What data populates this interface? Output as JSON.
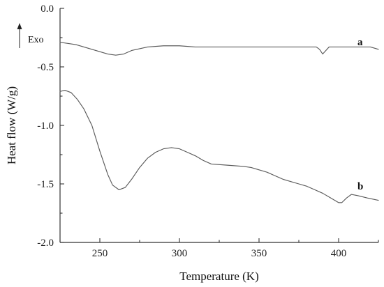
{
  "chart_data": {
    "type": "line",
    "xlabel": "Temperature (K)",
    "ylabel": "Heat flow (W/g)",
    "xlim": [
      225,
      425
    ],
    "ylim": [
      -2.0,
      0.0
    ],
    "x_ticks": [
      250,
      300,
      350,
      400
    ],
    "y_ticks": [
      0.0,
      -0.5,
      -1.0,
      -1.5,
      -2.0
    ],
    "x_tick_labels": [
      "250",
      "300",
      "350",
      "400"
    ],
    "y_tick_labels": [
      "0.0",
      "-0.5",
      "-1.0",
      "-1.5",
      "-2.0"
    ],
    "grid": false,
    "legend": "none",
    "annotations": {
      "exo_label": "Exo",
      "series_a_label": "a",
      "series_b_label": "b"
    },
    "series": [
      {
        "name": "a",
        "x": [
          225,
          235,
          245,
          255,
          260,
          265,
          270,
          280,
          290,
          300,
          310,
          320,
          330,
          340,
          350,
          360,
          370,
          380,
          386,
          388,
          390,
          392,
          394,
          400,
          410,
          420,
          425
        ],
        "y": [
          -0.29,
          -0.31,
          -0.35,
          -0.39,
          -0.4,
          -0.39,
          -0.36,
          -0.33,
          -0.32,
          -0.32,
          -0.33,
          -0.33,
          -0.33,
          -0.33,
          -0.33,
          -0.33,
          -0.33,
          -0.33,
          -0.33,
          -0.35,
          -0.39,
          -0.36,
          -0.33,
          -0.33,
          -0.33,
          -0.33,
          -0.35
        ]
      },
      {
        "name": "b",
        "x": [
          225,
          228,
          232,
          236,
          240,
          245,
          250,
          255,
          258,
          262,
          266,
          270,
          275,
          280,
          285,
          290,
          295,
          300,
          305,
          310,
          315,
          320,
          330,
          340,
          345,
          350,
          355,
          360,
          365,
          370,
          375,
          380,
          385,
          390,
          395,
          400,
          402,
          405,
          408,
          412,
          418,
          425
        ],
        "y": [
          -0.71,
          -0.7,
          -0.72,
          -0.78,
          -0.86,
          -1.0,
          -1.22,
          -1.42,
          -1.51,
          -1.55,
          -1.53,
          -1.46,
          -1.36,
          -1.28,
          -1.23,
          -1.2,
          -1.19,
          -1.2,
          -1.23,
          -1.26,
          -1.3,
          -1.33,
          -1.34,
          -1.35,
          -1.36,
          -1.38,
          -1.4,
          -1.43,
          -1.46,
          -1.48,
          -1.5,
          -1.52,
          -1.55,
          -1.58,
          -1.62,
          -1.66,
          -1.66,
          -1.62,
          -1.59,
          -1.6,
          -1.62,
          -1.64
        ]
      }
    ]
  }
}
